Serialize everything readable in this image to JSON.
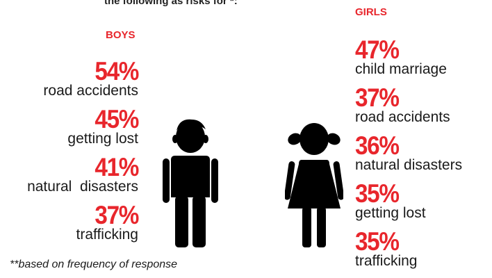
{
  "heading": "the following as risks for *:",
  "boys": {
    "title": "BOYS",
    "items": [
      {
        "percent": "54%",
        "label": "road accidents"
      },
      {
        "percent": "45%",
        "label": "getting lost"
      },
      {
        "percent": "41%",
        "label": "natural  disasters"
      },
      {
        "percent": "37%",
        "label": "trafficking"
      }
    ]
  },
  "girls": {
    "title": "GIRLS",
    "items": [
      {
        "percent": "47%",
        "label": "child marriage"
      },
      {
        "percent": "37%",
        "label": "road accidents"
      },
      {
        "percent": "36%",
        "label": "natural disasters"
      },
      {
        "percent": "35%",
        "label": "getting lost"
      },
      {
        "percent": "35%",
        "label": "trafficking"
      }
    ]
  },
  "footnote": "**based on frequency of response",
  "colors": {
    "accent": "#e8262c",
    "text": "#1a1a1a"
  },
  "icons": {
    "boy": "boy-figure-icon",
    "girl": "girl-figure-icon"
  }
}
